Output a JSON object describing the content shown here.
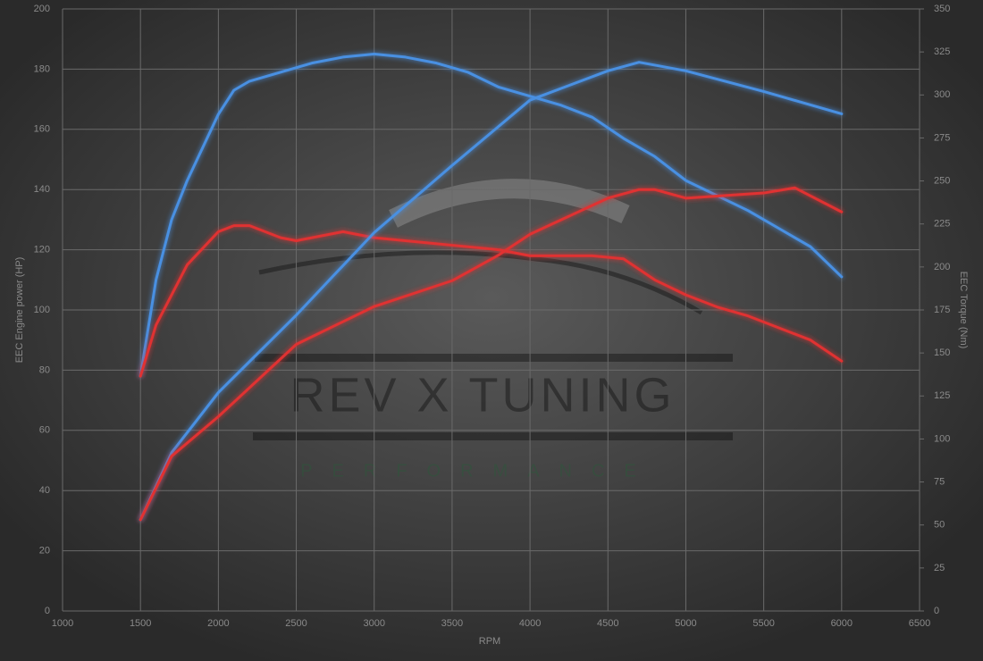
{
  "chart_data": {
    "type": "line",
    "x_label": "RPM",
    "y_label": "EEC Engine power (HP)",
    "y2_label": "EEC Torque (Nm)",
    "watermark": "REV X TUNING",
    "watermark_subtitle": "PERFORMANCE",
    "xlim": [
      1000,
      6500
    ],
    "xticks": [
      1000,
      1500,
      2000,
      2500,
      3000,
      3500,
      4000,
      4500,
      5000,
      5500,
      6000,
      6500
    ],
    "ylim": [
      0,
      200
    ],
    "yticks": [
      0,
      20,
      40,
      60,
      80,
      100,
      120,
      140,
      160,
      180,
      200
    ],
    "y2lim": [
      0,
      350
    ],
    "y2ticks": [
      0,
      25,
      50,
      75,
      100,
      125,
      150,
      175,
      200,
      225,
      250,
      275,
      300,
      325,
      350
    ],
    "grid": true,
    "series": [
      {
        "color": "#4a90e2",
        "axis": "y",
        "x": [
          1500,
          1600,
          1700,
          1800,
          2000,
          2100,
          2200,
          2400,
          2600,
          2800,
          3000,
          3200,
          3400,
          3600,
          3800,
          4000,
          4200,
          4400,
          4600,
          4800,
          5000,
          5200,
          5400,
          5600,
          5800,
          6000
        ],
        "values": [
          78,
          110,
          130,
          143,
          165,
          173,
          176,
          179,
          182,
          184,
          185,
          184,
          182,
          179,
          174,
          171,
          168,
          164,
          157,
          151,
          143,
          138,
          133,
          127,
          121,
          111
        ]
      },
      {
        "color": "#e03030",
        "axis": "y",
        "x": [
          1500,
          1600,
          1800,
          2000,
          2100,
          2200,
          2400,
          2500,
          2800,
          3000,
          3200,
          3400,
          3600,
          3800,
          4000,
          4400,
          4600,
          4800,
          5000,
          5200,
          5400,
          5600,
          5800,
          6000
        ],
        "values": [
          78,
          95,
          115,
          126,
          128,
          128,
          124,
          123,
          126,
          124,
          123,
          122,
          121,
          120,
          118,
          118,
          117,
          110,
          105,
          101,
          98,
          94,
          90,
          83
        ]
      },
      {
        "color": "#4a90e2",
        "axis": "y2",
        "x": [
          1500,
          1700,
          2000,
          2500,
          3000,
          3500,
          4000,
          4500,
          4700,
          5000,
          5500,
          6000
        ],
        "values": [
          53,
          92,
          127,
          172,
          220,
          259,
          297,
          314,
          319,
          314,
          302,
          289
        ]
      },
      {
        "color": "#e03030",
        "axis": "y2",
        "x": [
          1500,
          1700,
          2000,
          2500,
          3000,
          3500,
          3800,
          4000,
          4500,
          4700,
          4800,
          5000,
          5500,
          5700,
          6000
        ],
        "values": [
          53,
          90,
          113,
          155,
          177,
          192,
          207,
          219,
          240,
          245,
          245,
          240,
          243,
          246,
          232
        ]
      }
    ]
  }
}
